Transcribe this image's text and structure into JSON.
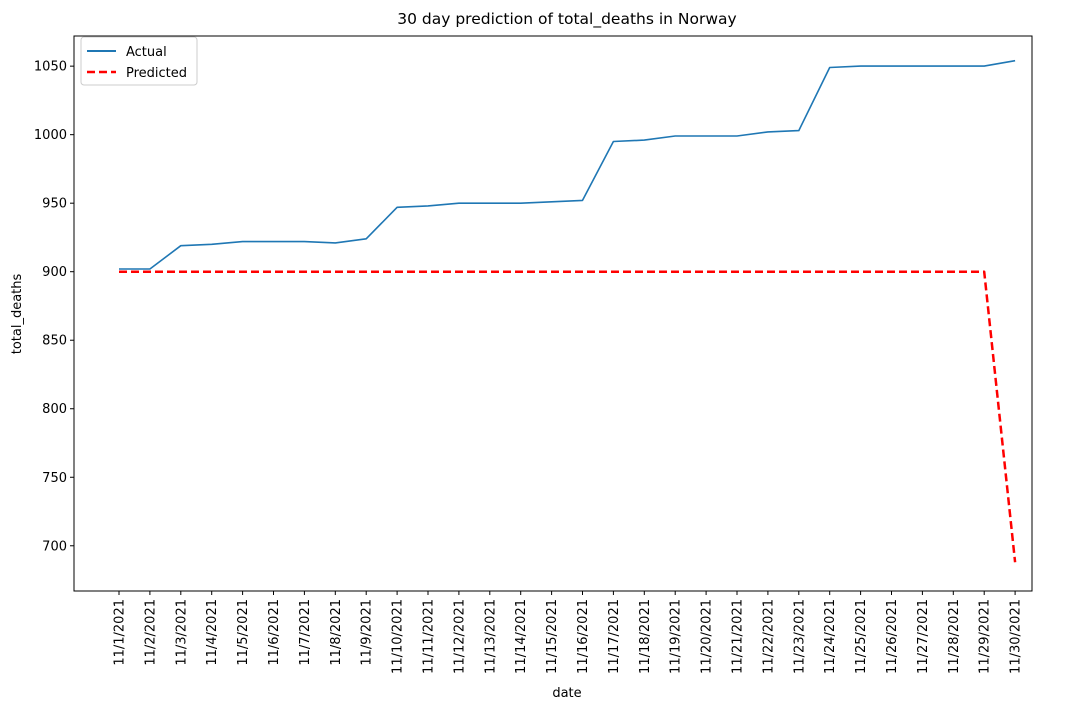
{
  "chart_data": {
    "type": "line",
    "title": "30 day prediction of total_deaths in Norway",
    "xlabel": "date",
    "ylabel": "total_deaths",
    "categories": [
      "11/1/2021",
      "11/2/2021",
      "11/3/2021",
      "11/4/2021",
      "11/5/2021",
      "11/6/2021",
      "11/7/2021",
      "11/8/2021",
      "11/9/2021",
      "11/10/2021",
      "11/11/2021",
      "11/12/2021",
      "11/13/2021",
      "11/14/2021",
      "11/15/2021",
      "11/16/2021",
      "11/17/2021",
      "11/18/2021",
      "11/19/2021",
      "11/20/2021",
      "11/21/2021",
      "11/22/2021",
      "11/23/2021",
      "11/24/2021",
      "11/25/2021",
      "11/26/2021",
      "11/27/2021",
      "11/28/2021",
      "11/29/2021",
      "11/30/2021"
    ],
    "yticks": [
      700,
      750,
      800,
      850,
      900,
      950,
      1000,
      1050
    ],
    "ylim": [
      667,
      1072
    ],
    "grid": false,
    "legend_position": "top-left",
    "series": [
      {
        "name": "Actual",
        "color": "#1f77b4",
        "style": "solid",
        "values": [
          902,
          902,
          919,
          920,
          922,
          922,
          922,
          921,
          924,
          947,
          948,
          950,
          950,
          950,
          951,
          952,
          995,
          996,
          999,
          999,
          999,
          1002,
          1003,
          1049,
          1050,
          1050,
          1050,
          1050,
          1050,
          1054
        ]
      },
      {
        "name": "Predicted",
        "color": "#ff0000",
        "style": "dashed",
        "values": [
          900,
          900,
          900,
          900,
          900,
          900,
          900,
          900,
          900,
          900,
          900,
          900,
          900,
          900,
          900,
          900,
          900,
          900,
          900,
          900,
          900,
          900,
          900,
          900,
          900,
          900,
          900,
          900,
          900,
          688
        ]
      }
    ]
  }
}
